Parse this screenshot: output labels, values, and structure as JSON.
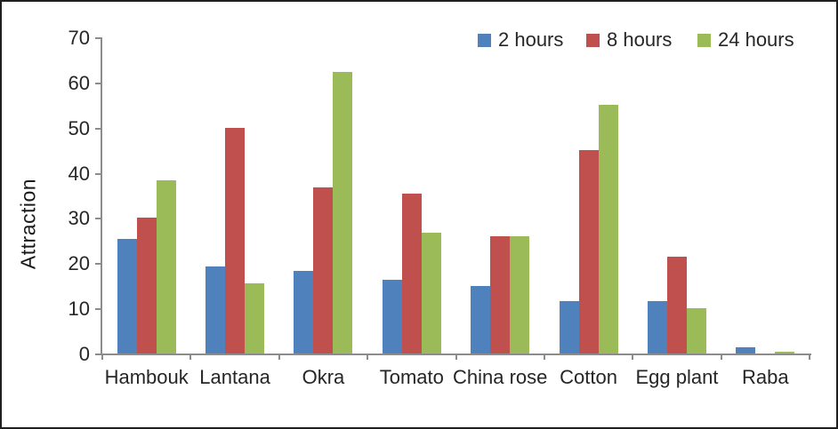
{
  "chart_data": {
    "type": "bar",
    "title": "",
    "xlabel": "",
    "ylabel": "Attraction",
    "ylim": [
      0,
      70
    ],
    "yticks": [
      0,
      10,
      20,
      30,
      40,
      50,
      60,
      70
    ],
    "grid": false,
    "legend_position": "top-right-inside",
    "categories": [
      "Hambouk",
      "Lantana",
      "Okra",
      "Tomato",
      "China rose",
      "Cotton",
      "Egg plant",
      "Raba"
    ],
    "series": [
      {
        "name": "2 hours",
        "color": "#4F81BD",
        "values": [
          25.3,
          19.3,
          18.3,
          16.3,
          14.9,
          11.6,
          11.6,
          1.3
        ]
      },
      {
        "name": "8 hours",
        "color": "#C0504D",
        "values": [
          30.0,
          50.0,
          36.7,
          35.4,
          26.0,
          45.0,
          21.4,
          0.0
        ]
      },
      {
        "name": "24 hours",
        "color": "#9BBB59",
        "values": [
          38.4,
          15.5,
          62.3,
          26.7,
          26.0,
          55.0,
          10.0,
          0.4
        ]
      }
    ],
    "axis_color": "#8c8c8c",
    "text_color": "#262626"
  }
}
